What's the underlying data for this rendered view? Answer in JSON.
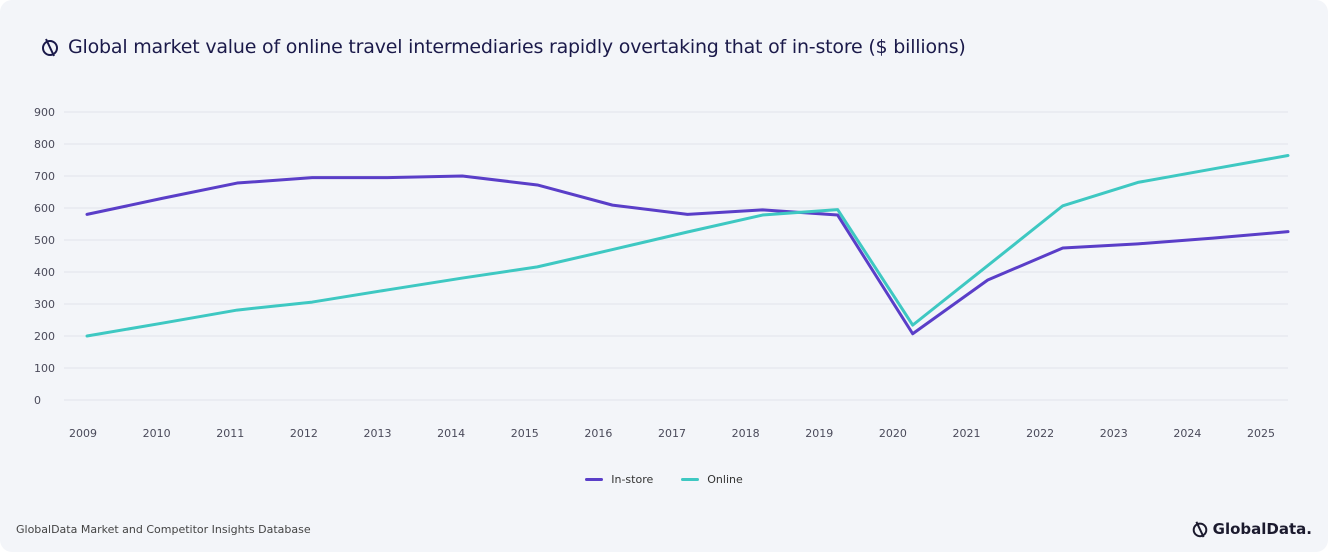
{
  "title": "Global market value of online travel intermediaries rapidly overtaking that of in-store ($ billions)",
  "source": "GlobalData Market and Competitor Insights Database",
  "logo_text": "GlobalData.",
  "chart_data": {
    "type": "line",
    "title": "Global market value of online travel intermediaries rapidly overtaking that of in-store ($ billions)",
    "categories": [
      "2009",
      "2010",
      "2011",
      "2012",
      "2013",
      "2014",
      "2015",
      "2016",
      "2017",
      "2018",
      "2019",
      "2020",
      "2021",
      "2022",
      "2023",
      "2024",
      "2025"
    ],
    "yticks": [
      0,
      100,
      200,
      300,
      400,
      500,
      600,
      700,
      800,
      900
    ],
    "ylim": [
      0,
      900
    ],
    "grid": true,
    "legend": "bottom",
    "series": [
      {
        "name": "In-store",
        "color": "#5a3ec8",
        "values": [
          580,
          630,
          678,
          695,
          695,
          700,
          672,
          609,
          580,
          594,
          578,
          207,
          375,
          475,
          488,
          506,
          526
        ]
      },
      {
        "name": "Online",
        "color": "#3ec8c2",
        "values": [
          200,
          240,
          281,
          306,
          344,
          381,
          416,
          470,
          525,
          578,
          595,
          234,
          420,
          607,
          680,
          722,
          764
        ]
      }
    ]
  }
}
